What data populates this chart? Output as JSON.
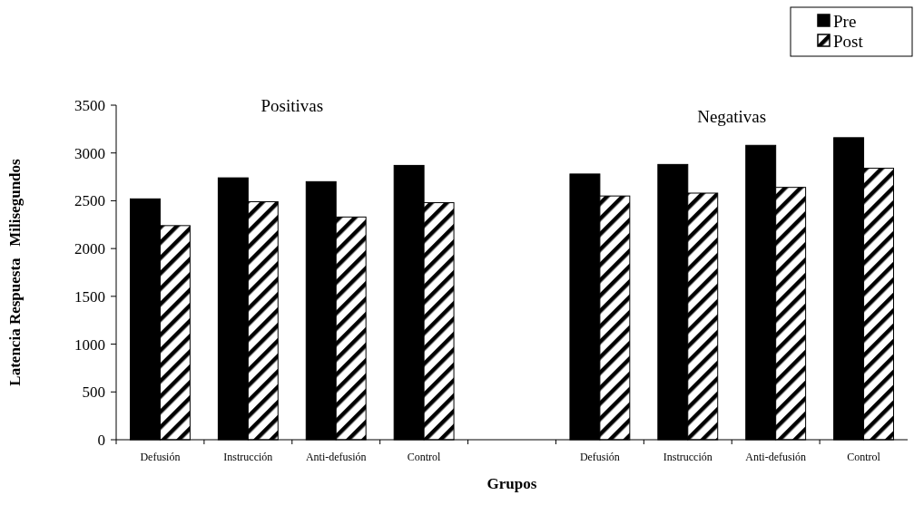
{
  "chart_data": {
    "type": "bar",
    "xlabel": "Grupos",
    "ylabel": "Latencia Respuesta   Milisegundos",
    "categories": [
      "Defusión",
      "Instrucción",
      "Anti-defusión",
      "Control",
      null,
      "Defusión",
      "Instrucción",
      "Anti-defusión",
      "Control"
    ],
    "series": [
      {
        "name": "Pre",
        "color": "#000000",
        "values": [
          2520,
          2740,
          2700,
          2870,
          null,
          2780,
          2880,
          3080,
          3160
        ]
      },
      {
        "name": "Post",
        "color": "#000000",
        "values": [
          2240,
          2490,
          2330,
          2480,
          null,
          2550,
          2580,
          2640,
          2840
        ]
      }
    ],
    "annotations": [
      "Positivas",
      "Negativas"
    ],
    "ylim": [
      0,
      3500
    ],
    "yticks": [
      0,
      500,
      1000,
      1500,
      2000,
      2500,
      3000,
      3500
    ],
    "grid": false,
    "legend": "top right"
  }
}
